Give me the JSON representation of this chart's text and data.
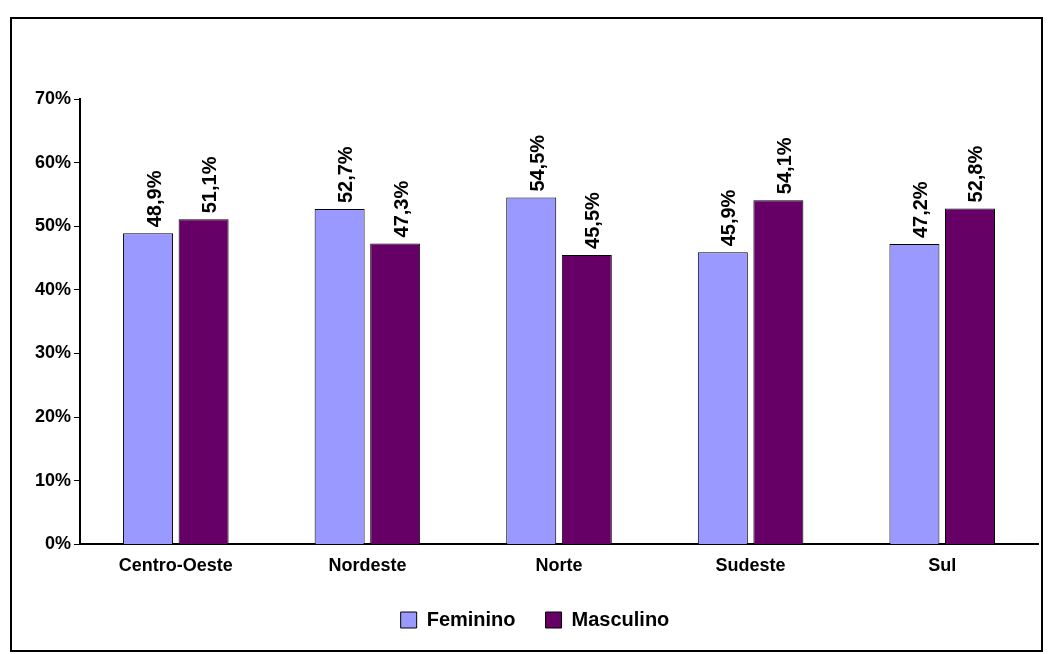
{
  "chart_data": {
    "type": "bar",
    "categories": [
      "Centro-Oeste",
      "Nordeste",
      "Norte",
      "Sudeste",
      "Sul"
    ],
    "series": [
      {
        "name": "Feminino",
        "color": "#9999ff",
        "values": [
          48.9,
          52.7,
          54.5,
          45.9,
          47.2
        ],
        "value_labels": [
          "48,9%",
          "52,7%",
          "54,5%",
          "45,9%",
          "47,2%"
        ]
      },
      {
        "name": "Masculino",
        "color": "#660066",
        "values": [
          51.1,
          47.3,
          45.5,
          54.1,
          52.8
        ],
        "value_labels": [
          "51,1%",
          "47,3%",
          "45,5%",
          "54,1%",
          "52,8%"
        ]
      }
    ],
    "ylim": [
      0,
      70
    ],
    "yticks": [
      {
        "value": 0,
        "label": "0%"
      },
      {
        "value": 10,
        "label": "10%"
      },
      {
        "value": 20,
        "label": "20%"
      },
      {
        "value": 30,
        "label": "30%"
      },
      {
        "value": 40,
        "label": "40%"
      },
      {
        "value": 50,
        "label": "50%"
      },
      {
        "value": 60,
        "label": "60%"
      },
      {
        "value": 70,
        "label": "70%"
      }
    ],
    "grid": false,
    "legend": "bottom"
  }
}
